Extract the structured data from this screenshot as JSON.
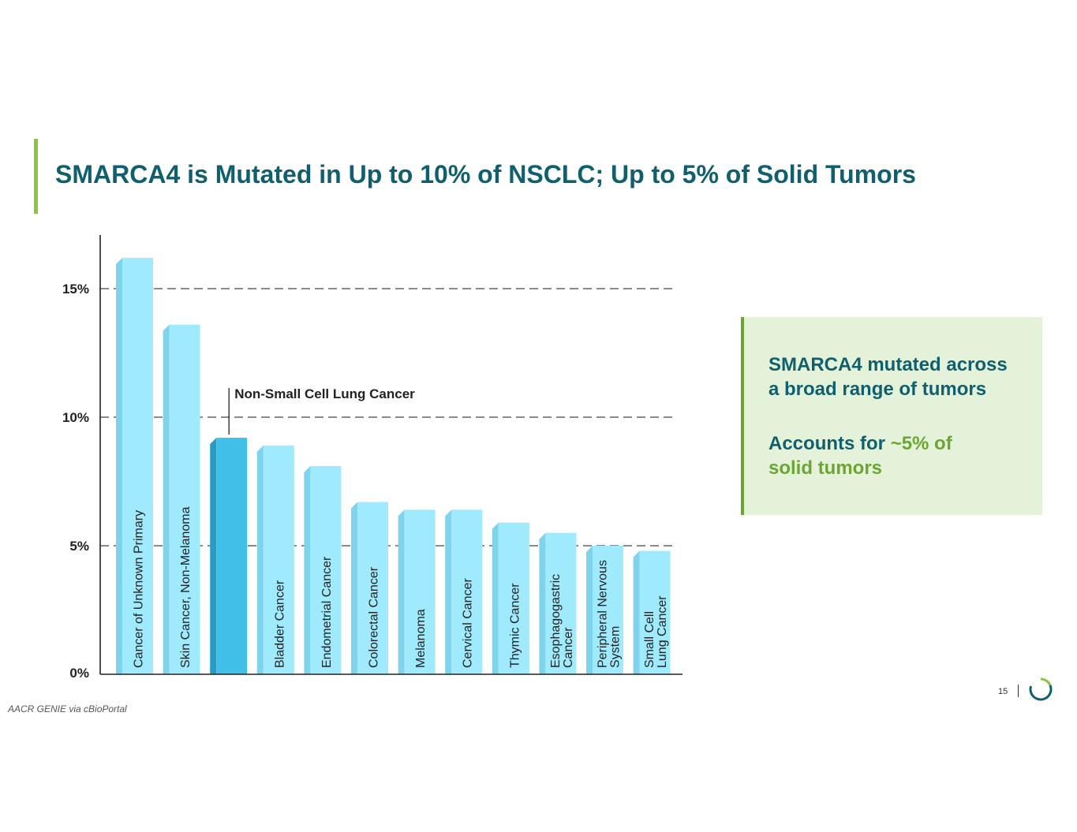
{
  "slide": {
    "title": "SMARCA4 is Mutated in Up to 10% of NSCLC; Up to 5% of Solid Tumors",
    "source": "AACR GENIE via cBioPortal",
    "page_number": "15"
  },
  "callout": {
    "line1": "SMARCA4 mutated across",
    "line2": "a broad range of tumors",
    "line3_prefix": "Accounts for ",
    "line3_highlight": "~5% of",
    "line4": "solid tumors"
  },
  "colors": {
    "brand": "#0f5f6e",
    "accent_green": "#6da534",
    "bar": "#9feafc",
    "bar_highlight": "#40bfe8"
  },
  "chart_data": {
    "type": "bar",
    "title": "",
    "xlabel": "",
    "ylabel": "",
    "ylim": [
      0,
      17
    ],
    "gridlines": [
      5,
      10,
      15
    ],
    "yticks": [
      "0%",
      "5%",
      "10%",
      "15%"
    ],
    "categories": [
      [
        "Cancer of Unknown Primary"
      ],
      [
        "Skin Cancer, Non-Melanoma"
      ],
      [
        "Non-Small Cell Lung Cancer"
      ],
      [
        "Bladder Cancer"
      ],
      [
        "Endometrial Cancer"
      ],
      [
        "Colorectal Cancer"
      ],
      [
        "Melanoma"
      ],
      [
        "Cervical Cancer"
      ],
      [
        "Thymic Cancer"
      ],
      [
        "Esophagogastric",
        "Cancer"
      ],
      [
        "Peripheral Nervous",
        "System"
      ],
      [
        "Small Cell",
        "Lung Cancer"
      ]
    ],
    "values": [
      16.2,
      13.6,
      9.2,
      8.9,
      8.1,
      6.7,
      6.4,
      6.4,
      5.9,
      5.5,
      5.0,
      4.8
    ],
    "highlight_index": 2,
    "annotation": "Non-Small Cell Lung Cancer"
  }
}
